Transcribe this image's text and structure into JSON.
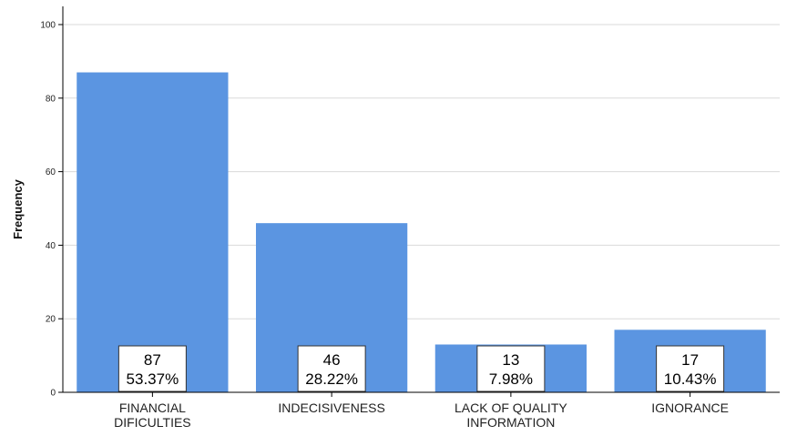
{
  "chart_data": {
    "type": "bar",
    "title": "",
    "xlabel": "",
    "ylabel": "Frequency",
    "ylim": [
      0,
      100
    ],
    "yticks": [
      0,
      20,
      40,
      60,
      80,
      100
    ],
    "grid": true,
    "bar_color": "#5b95e1",
    "categories": [
      [
        "FINANCIAL",
        "DIFICULTIES"
      ],
      [
        "INDECISIVENESS"
      ],
      [
        "LACK OF QUALITY",
        "INFORMATION"
      ],
      [
        "IGNORANCE"
      ]
    ],
    "values": [
      87,
      46,
      13,
      17
    ],
    "percentages": [
      "53.37%",
      "28.22%",
      "7.98%",
      "10.43%"
    ]
  }
}
